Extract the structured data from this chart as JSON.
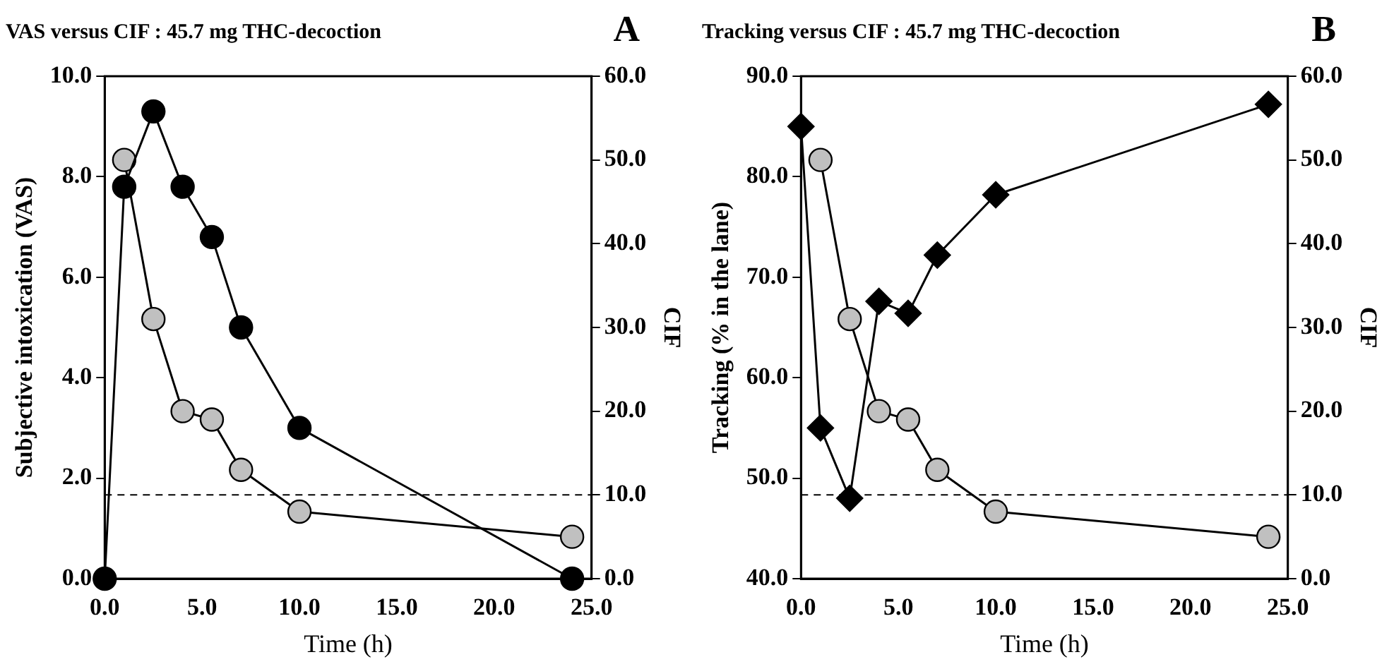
{
  "chart_data": [
    {
      "type": "line",
      "title": "VAS versus CIF : 45.7 mg THC-decoction",
      "annotations": [
        "A"
      ],
      "xlabel": "Time (h)",
      "ylabel": "Subjective intoxication (VAS)",
      "y2label": "CIF",
      "series": [
        {
          "color": "#000000",
          "marker": "circle",
          "x": [
            0,
            1,
            2.5,
            4,
            5.5,
            7,
            10,
            24
          ],
          "values": [
            0,
            7.8,
            9.3,
            7.8,
            6.8,
            5.0,
            3.0,
            0
          ]
        },
        {
          "color": "#c0c0c0",
          "marker": "circle",
          "axis": "y2",
          "x": [
            1,
            2.5,
            4,
            5.5,
            7,
            10,
            24
          ],
          "values": [
            50,
            31,
            20,
            19,
            13,
            8,
            5
          ]
        }
      ],
      "xlim": [
        0,
        25
      ],
      "xticks": [
        {
          "value": 0,
          "label": "0.0"
        },
        {
          "value": 5,
          "label": "5.0"
        },
        {
          "value": 10,
          "label": "10.0"
        },
        {
          "value": 15,
          "label": "15.0"
        },
        {
          "value": 20,
          "label": "20.0"
        },
        {
          "value": 25,
          "label": "25.0"
        }
      ],
      "ylim": [
        0,
        10
      ],
      "yticks": [
        {
          "value": 0,
          "label": "0.0"
        },
        {
          "value": 2,
          "label": "2.0"
        },
        {
          "value": 4,
          "label": "4.0"
        },
        {
          "value": 6,
          "label": "6.0"
        },
        {
          "value": 8,
          "label": "8.0"
        },
        {
          "value": 10,
          "label": "10.0"
        }
      ],
      "y2lim": [
        0,
        60
      ],
      "y2ticks": [
        {
          "value": 0,
          "label": "0.0"
        },
        {
          "value": 10,
          "label": "10.0"
        },
        {
          "value": 20,
          "label": "20.0"
        },
        {
          "value": 30,
          "label": "30.0"
        },
        {
          "value": 40,
          "label": "40.0"
        },
        {
          "value": 50,
          "label": "50.0"
        },
        {
          "value": 60,
          "label": "60.0"
        }
      ],
      "ref_lines": [
        {
          "axis": "y2",
          "value": 10,
          "line_style": "dashed",
          "color": "#000000"
        }
      ],
      "grid": false,
      "legend": false
    },
    {
      "type": "line",
      "title": "Tracking versus CIF : 45.7 mg THC-decoction",
      "annotations": [
        "B"
      ],
      "xlabel": "Time (h)",
      "ylabel": "Tracking (% in the lane)",
      "y2label": "CIF",
      "series": [
        {
          "color": "#000000",
          "marker": "diamond",
          "x": [
            0,
            1,
            2.5,
            4,
            5.5,
            7,
            10,
            24
          ],
          "values": [
            85,
            55,
            48,
            67.6,
            66.4,
            72.2,
            78.2,
            87.2
          ]
        },
        {
          "color": "#c0c0c0",
          "marker": "circle",
          "axis": "y2",
          "x": [
            1,
            2.5,
            4,
            5.5,
            7,
            10,
            24
          ],
          "values": [
            50,
            31,
            20,
            19,
            13,
            8,
            5
          ]
        }
      ],
      "xlim": [
        0,
        25
      ],
      "xticks": [
        {
          "value": 0,
          "label": "0.0"
        },
        {
          "value": 5,
          "label": "5.0"
        },
        {
          "value": 10,
          "label": "10.0"
        },
        {
          "value": 15,
          "label": "15.0"
        },
        {
          "value": 20,
          "label": "20.0"
        },
        {
          "value": 25,
          "label": "25.0"
        }
      ],
      "ylim": [
        40,
        90
      ],
      "yticks": [
        {
          "value": 40,
          "label": "40.0"
        },
        {
          "value": 50,
          "label": "50.0"
        },
        {
          "value": 60,
          "label": "60.0"
        },
        {
          "value": 70,
          "label": "70.0"
        },
        {
          "value": 80,
          "label": "80.0"
        },
        {
          "value": 90,
          "label": "90.0"
        }
      ],
      "y2lim": [
        0,
        60
      ],
      "y2ticks": [
        {
          "value": 0,
          "label": "0.0"
        },
        {
          "value": 10,
          "label": "10.0"
        },
        {
          "value": 20,
          "label": "20.0"
        },
        {
          "value": 30,
          "label": "30.0"
        },
        {
          "value": 40,
          "label": "40.0"
        },
        {
          "value": 50,
          "label": "50.0"
        },
        {
          "value": 60,
          "label": "60.0"
        }
      ],
      "ref_lines": [
        {
          "axis": "y2",
          "value": 10,
          "line_style": "dashed",
          "color": "#000000"
        }
      ],
      "grid": false,
      "legend": false
    }
  ]
}
